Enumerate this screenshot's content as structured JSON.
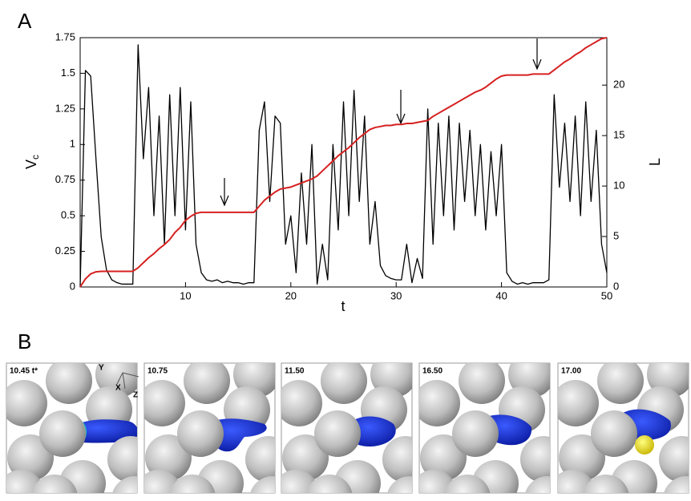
{
  "figure": {
    "panel_labels": [
      "A",
      "B"
    ],
    "snapshots": [
      "10.45 t*",
      "10.75",
      "11.50",
      "16.50",
      "17.00"
    ],
    "axes_triad": [
      "Y",
      "X",
      "Z"
    ]
  },
  "chart_data": {
    "type": "line",
    "xlabel": "t",
    "ylabel": "V",
    "ylabel_subscript": "c",
    "y2label": "L",
    "x": [
      0,
      0.5,
      1,
      1.5,
      2,
      2.5,
      3,
      3.5,
      4,
      4.5,
      5,
      5.5,
      6,
      6.5,
      7,
      7.5,
      8,
      8.5,
      9,
      9.5,
      10,
      10.5,
      11,
      11.5,
      12,
      12.5,
      13,
      13.5,
      14,
      14.5,
      15,
      15.5,
      16,
      16.5,
      17,
      17.5,
      18,
      18.5,
      19,
      19.5,
      20,
      20.5,
      21,
      21.5,
      22,
      22.5,
      23,
      23.5,
      24,
      24.5,
      25,
      25.5,
      26,
      26.5,
      27,
      27.5,
      28,
      28.5,
      29,
      29.5,
      30,
      30.5,
      31,
      31.5,
      32,
      32.5,
      33,
      33.5,
      34,
      34.5,
      35,
      35.5,
      36,
      36.5,
      37,
      37.5,
      38,
      38.5,
      39,
      39.5,
      40,
      40.5,
      41,
      41.5,
      42,
      42.5,
      43,
      43.5,
      44,
      44.5,
      45,
      45.5,
      46,
      46.5,
      47,
      47.5,
      48,
      48.5,
      49,
      49.5,
      50
    ],
    "series": [
      {
        "color": "#000000",
        "values": [
          0,
          1.52,
          1.48,
          0.9,
          0.35,
          0.12,
          0.05,
          0.03,
          0.02,
          0.02,
          0.02,
          1.7,
          0.9,
          1.4,
          0.5,
          1.2,
          0.3,
          1.35,
          0.5,
          1.4,
          0.4,
          1.3,
          0.3,
          0.1,
          0.05,
          0.04,
          0.05,
          0.03,
          0.04,
          0.03,
          0.03,
          0.02,
          0.03,
          0.03,
          1.1,
          1.3,
          0.6,
          1.2,
          1.15,
          0.3,
          0.5,
          0.1,
          0.8,
          0.3,
          1.0,
          0.02,
          0.3,
          0.05,
          1.0,
          0.4,
          1.3,
          0.5,
          1.38,
          0.6,
          1.2,
          0.3,
          0.6,
          0.15,
          0.08,
          0.06,
          0.05,
          0.05,
          0.3,
          0.03,
          0.2,
          0.06,
          1.25,
          0.3,
          1.15,
          0.5,
          1.2,
          0.4,
          1.15,
          0.6,
          1.1,
          0.5,
          1.0,
          0.4,
          0.95,
          0.5,
          1.0,
          0.1,
          0.04,
          0.02,
          0.03,
          0.02,
          0.03,
          0.03,
          0.03,
          0.05,
          1.35,
          0.7,
          1.15,
          0.6,
          1.2,
          0.5,
          1.3,
          0.6,
          1.1,
          0.3,
          0.1
        ]
      },
      {
        "color": "#d62020",
        "axis": "y2",
        "values": [
          0,
          0.8,
          1.3,
          1.5,
          1.55,
          1.55,
          1.55,
          1.55,
          1.55,
          1.55,
          1.55,
          1.9,
          2.4,
          2.9,
          3.3,
          3.8,
          4.2,
          4.7,
          5.4,
          5.9,
          6.6,
          7.0,
          7.3,
          7.4,
          7.4,
          7.4,
          7.4,
          7.4,
          7.4,
          7.4,
          7.4,
          7.4,
          7.4,
          7.4,
          8.0,
          8.6,
          9.0,
          9.4,
          9.7,
          9.8,
          9.9,
          10.1,
          10.3,
          10.5,
          10.7,
          11.0,
          11.5,
          12.0,
          12.5,
          13.0,
          13.4,
          13.8,
          14.3,
          14.8,
          15.2,
          15.6,
          15.8,
          15.9,
          16.0,
          16.0,
          16.1,
          16.1,
          16.2,
          16.2,
          16.3,
          16.4,
          16.5,
          16.9,
          17.2,
          17.5,
          17.8,
          18.1,
          18.4,
          18.7,
          19.0,
          19.3,
          19.5,
          19.8,
          20.2,
          20.6,
          20.9,
          21.0,
          21.0,
          21.0,
          21.0,
          21.0,
          21.1,
          21.1,
          21.1,
          21.1,
          21.5,
          21.9,
          22.3,
          22.6,
          23.0,
          23.3,
          23.7,
          24.0,
          24.3,
          24.6,
          24.7
        ]
      }
    ],
    "xlim": [
      0,
      50
    ],
    "xticks": [
      10,
      20,
      30,
      40,
      50
    ],
    "ylim": [
      0,
      1.75
    ],
    "yticks": [
      0,
      0.25,
      0.5,
      0.75,
      1,
      1.25,
      1.5,
      1.75
    ],
    "y2lim": [
      0,
      24.7
    ],
    "y2ticks": [
      0,
      5,
      10,
      15,
      20
    ],
    "grid": false
  }
}
